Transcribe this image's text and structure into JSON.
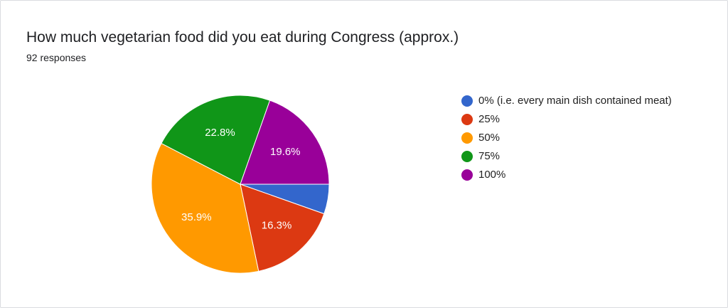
{
  "title": "How much vegetarian food did you eat during Congress (approx.)",
  "subtitle": "92 responses",
  "chart_data": {
    "type": "pie",
    "categories": [
      "0% (i.e. every main dish contained meat)",
      "25%",
      "50%",
      "75%",
      "100%"
    ],
    "values": [
      5.4,
      16.3,
      35.9,
      22.8,
      19.6
    ],
    "value_labels": [
      null,
      "16.3%",
      "35.9%",
      "22.8%",
      "19.6%"
    ],
    "colors": [
      "#3366cc",
      "#dc3912",
      "#ff9900",
      "#109618",
      "#990099"
    ]
  }
}
